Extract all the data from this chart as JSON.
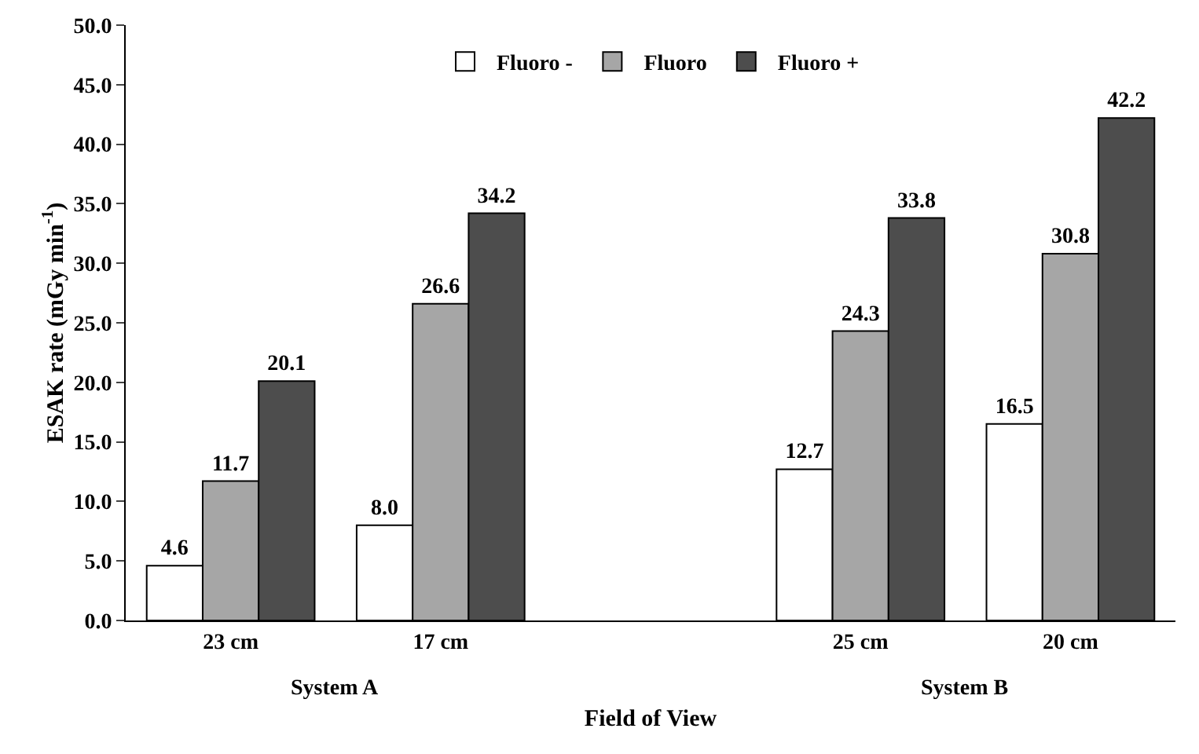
{
  "chart_data": {
    "type": "bar",
    "xlabel": "Field of View",
    "ylabel": "ESAK rate (mGy min$^{-1}$)",
    "categories": [
      "23 cm",
      "17 cm",
      null,
      "25 cm",
      "20 cm"
    ],
    "series": [
      {
        "name": "Fluoro -",
        "color": "#ffffff",
        "values": [
          4.6,
          8.0,
          null,
          12.7,
          16.5
        ],
        "value_labels": [
          "4.6",
          "8.0",
          null,
          "12.7",
          "16.5"
        ]
      },
      {
        "name": "Fluoro",
        "color": "#a6a6a6",
        "values": [
          11.7,
          26.6,
          null,
          24.3,
          30.8
        ],
        "value_labels": [
          "11.7",
          "26.6",
          null,
          "24.3",
          "30.8"
        ]
      },
      {
        "name": "Fluoro +",
        "color": "#4d4d4d",
        "values": [
          20.1,
          34.2,
          null,
          33.8,
          42.2
        ],
        "value_labels": [
          "20.1",
          "34.2",
          null,
          "33.8",
          "42.2"
        ]
      }
    ],
    "ylim": [
      0,
      50
    ],
    "yticks": [
      {
        "value": 0,
        "label": "0.0"
      },
      {
        "value": 5,
        "label": "5.0"
      },
      {
        "value": 10,
        "label": "10.0"
      },
      {
        "value": 15,
        "label": "15.0"
      },
      {
        "value": 20,
        "label": "20.0"
      },
      {
        "value": 25,
        "label": "25.0"
      },
      {
        "value": 30,
        "label": "30.0"
      },
      {
        "value": 35,
        "label": "35.0"
      },
      {
        "value": 40,
        "label": "40.0"
      },
      {
        "value": 45,
        "label": "45.0"
      },
      {
        "value": 50,
        "label": "50.0"
      }
    ],
    "annotations": [
      "System A",
      "System B"
    ],
    "grid": false,
    "legend": "top"
  }
}
